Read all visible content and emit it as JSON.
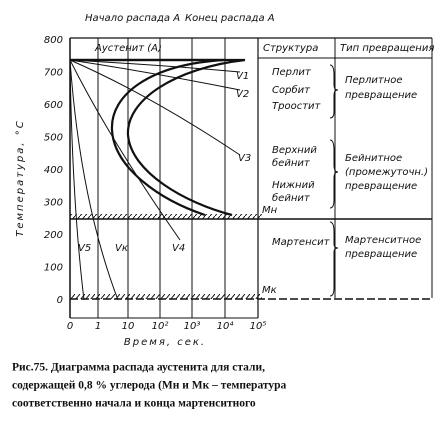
{
  "diagram": {
    "top_labels": [
      "Начало распада А",
      "Конец распада А"
    ],
    "region_label": "Аустенит (А)",
    "columns": [
      "Структура",
      "Тип превращения"
    ],
    "structures": [
      "Перлит",
      "Сорбит",
      "Троостит",
      "Верхний",
      "бейнит",
      "Нижний",
      "бейнит",
      "Мартенсит"
    ],
    "transformations": [
      "Перлитное",
      "превращение",
      "Бейнитное",
      "(промежуточн.)",
      "превращение",
      "Мартенситное",
      "превращение"
    ],
    "lines": [
      "Mн",
      "Mк"
    ],
    "cooling_rates": [
      "V1",
      "V2",
      "V3",
      "V4",
      "Vк",
      "V5"
    ],
    "y_axis": {
      "label": "Температура, °С",
      "ticks": [
        "800",
        "700",
        "600",
        "500",
        "400",
        "300",
        "200",
        "100",
        "0"
      ]
    },
    "x_axis": {
      "label": "Время, сек.",
      "ticks": [
        "0",
        "1",
        "10",
        "10²",
        "10³",
        "10⁴",
        "10⁵"
      ]
    },
    "caption": [
      "Рис.75. Диаграмма распада аустенита для стали,",
      "содержащей 0,8 % углерода (Mн и Mк – температура",
      "соответственно начала и конца мартенситного"
    ]
  }
}
